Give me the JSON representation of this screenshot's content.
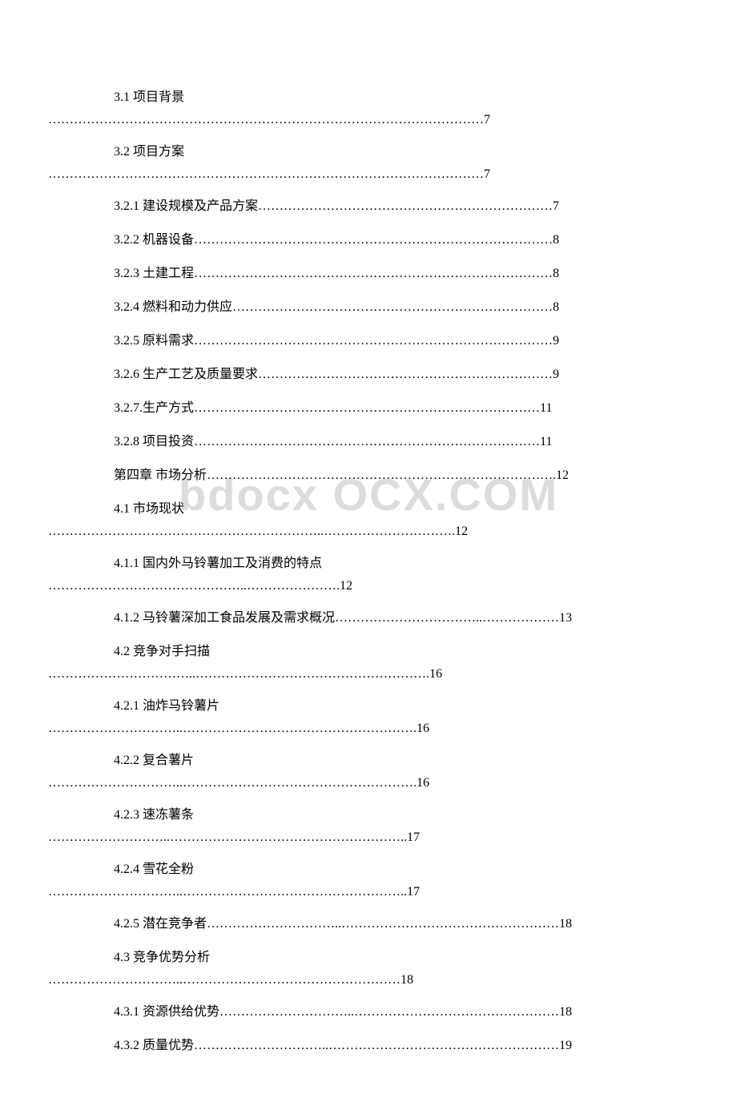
{
  "watermark": "bdocx OCX.COM",
  "toc": {
    "entries": [
      {
        "type": "wrap",
        "title": "3.1 项目背景",
        "dots": "…………………………………………………………………………………………7"
      },
      {
        "type": "wrap",
        "title": "3.2 项目方案",
        "dots": "…………………………………………………………………………………………7"
      },
      {
        "type": "single",
        "text": "3.2.1 建设规模及产品方案……………………………………………………………7"
      },
      {
        "type": "single",
        "text": "3.2.2 机器设备…………………………………………………………………………8"
      },
      {
        "type": "single",
        "text": "3.2.3 土建工程…………………………………………………………………………8"
      },
      {
        "type": "single",
        "text": "3.2.4 燃料和动力供应…………………………………………………………………8"
      },
      {
        "type": "single",
        "text": "3.2.5 原料需求…………………………………………………………………………9"
      },
      {
        "type": "single",
        "text": "3.2.6 生产工艺及质量要求……………………………………………………………9"
      },
      {
        "type": "single",
        "text": "3.2.7.生产方式………………………………………………………………………11"
      },
      {
        "type": "single",
        "text": "3.2.8 项目投资………………………………………………………………………11"
      },
      {
        "type": "single",
        "text": "第四章 市场分析……………………………………………………………………….12"
      },
      {
        "type": "wrap",
        "title": "4.1 市场现状",
        "dots": "………………………………………………………..………………………….12"
      },
      {
        "type": "wrap",
        "title": "4.1.1 国内外马铃薯加工及消费的特点",
        "dots": "………………………………………..………………….12"
      },
      {
        "type": "single",
        "text": "4.1.2 马铃薯深加工食品发展及需求概况……………………………..………………13"
      },
      {
        "type": "wrap",
        "title": "4.2 竞争对手扫描",
        "dots": "……………………………..……………………………………………….16"
      },
      {
        "type": "wrap",
        "title": "4.2.1 油炸马铃薯片",
        "dots": "…………………………..……………………………………………….16"
      },
      {
        "type": "wrap",
        "title": "4.2.2 复合薯片",
        "dots": "…………………………..……………………………………………….16"
      },
      {
        "type": "wrap",
        "title": "4.2.3 速冻薯条",
        "dots": "………………………..………………………………………………..17"
      },
      {
        "type": "wrap",
        "title": "4.2.4 雪花全粉",
        "dots": "…………………………..……………………………………………..17"
      },
      {
        "type": "single",
        "text": "4.2.5 潜在竞争者…………………………..……………………………………………18"
      },
      {
        "type": "wrap",
        "title": "4.3 竞争优势分析",
        "dots": "…………………………..……………………………………………18"
      },
      {
        "type": "single",
        "text": "4.3.1 资源供给优势…………………………..…………………………………………18"
      },
      {
        "type": "single",
        "text": "4.3.2 质量优势…………………………..………………………………………………19"
      }
    ]
  }
}
